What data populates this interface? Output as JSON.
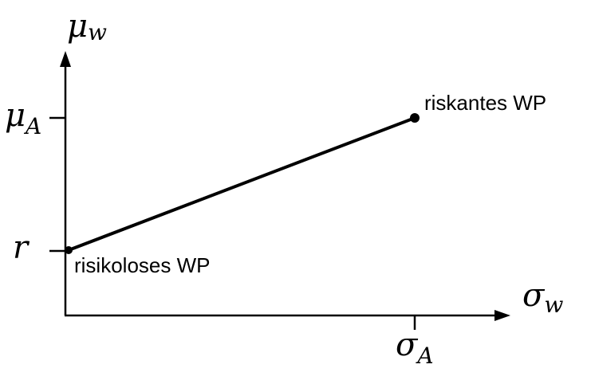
{
  "axes": {
    "y_axis": {
      "symbol": "μ",
      "subscript": "w"
    },
    "x_axis": {
      "symbol": "σ",
      "subscript": "w"
    }
  },
  "ticks": {
    "y_upper": {
      "symbol": "μ",
      "subscript": "A"
    },
    "y_lower": {
      "symbol": "r"
    },
    "x_tick": {
      "symbol": "σ",
      "subscript": "A"
    }
  },
  "points": {
    "risk_free": {
      "label": "risikoloses WP"
    },
    "risky": {
      "label": "riskantes WP"
    }
  },
  "colors": {
    "line": "#000000",
    "background": "#ffffff"
  }
}
